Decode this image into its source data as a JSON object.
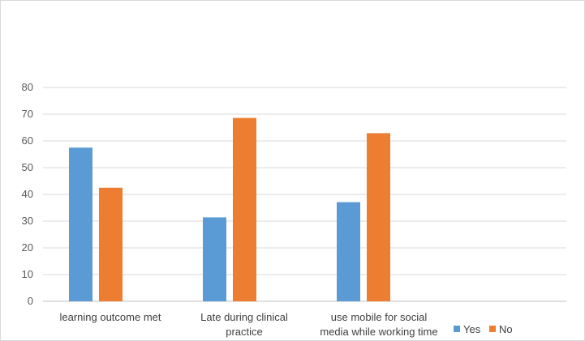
{
  "chart_data": {
    "type": "bar",
    "categories": [
      [
        "learning outcome met"
      ],
      [
        "Late during clinical",
        "practice"
      ],
      [
        "use mobile for social",
        "media while working time"
      ]
    ],
    "series": [
      {
        "name": "Yes",
        "color": "#5b9bd5",
        "values": [
          57.5,
          31.4,
          37.1
        ]
      },
      {
        "name": "No",
        "color": "#ed7d31",
        "values": [
          42.5,
          68.6,
          62.9
        ]
      }
    ],
    "yticks": [
      0,
      10,
      20,
      30,
      40,
      50,
      60,
      70,
      80
    ],
    "ylim": [
      0,
      80
    ],
    "grid": true,
    "legend_position": "bottom-right"
  }
}
